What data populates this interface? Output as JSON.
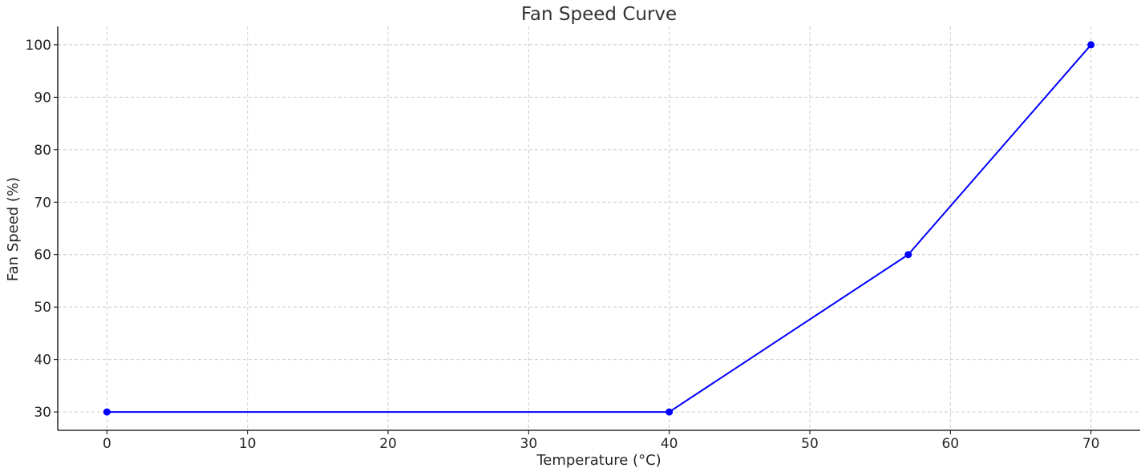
{
  "chart_data": {
    "type": "line",
    "title": "Fan Speed Curve",
    "xlabel": "Temperature (°C)",
    "ylabel": "Fan Speed (%)",
    "xlim": [
      -3.5,
      73.5
    ],
    "ylim": [
      26.5,
      103.5
    ],
    "xticks": [
      0,
      10,
      20,
      30,
      40,
      50,
      60,
      70
    ],
    "yticks": [
      30,
      40,
      50,
      60,
      70,
      80,
      90,
      100
    ],
    "grid": true,
    "series": [
      {
        "color": "#0000ff",
        "marker": "circle",
        "x": [
          0,
          40,
          57,
          70
        ],
        "y": [
          30,
          30,
          60,
          100
        ]
      }
    ]
  }
}
